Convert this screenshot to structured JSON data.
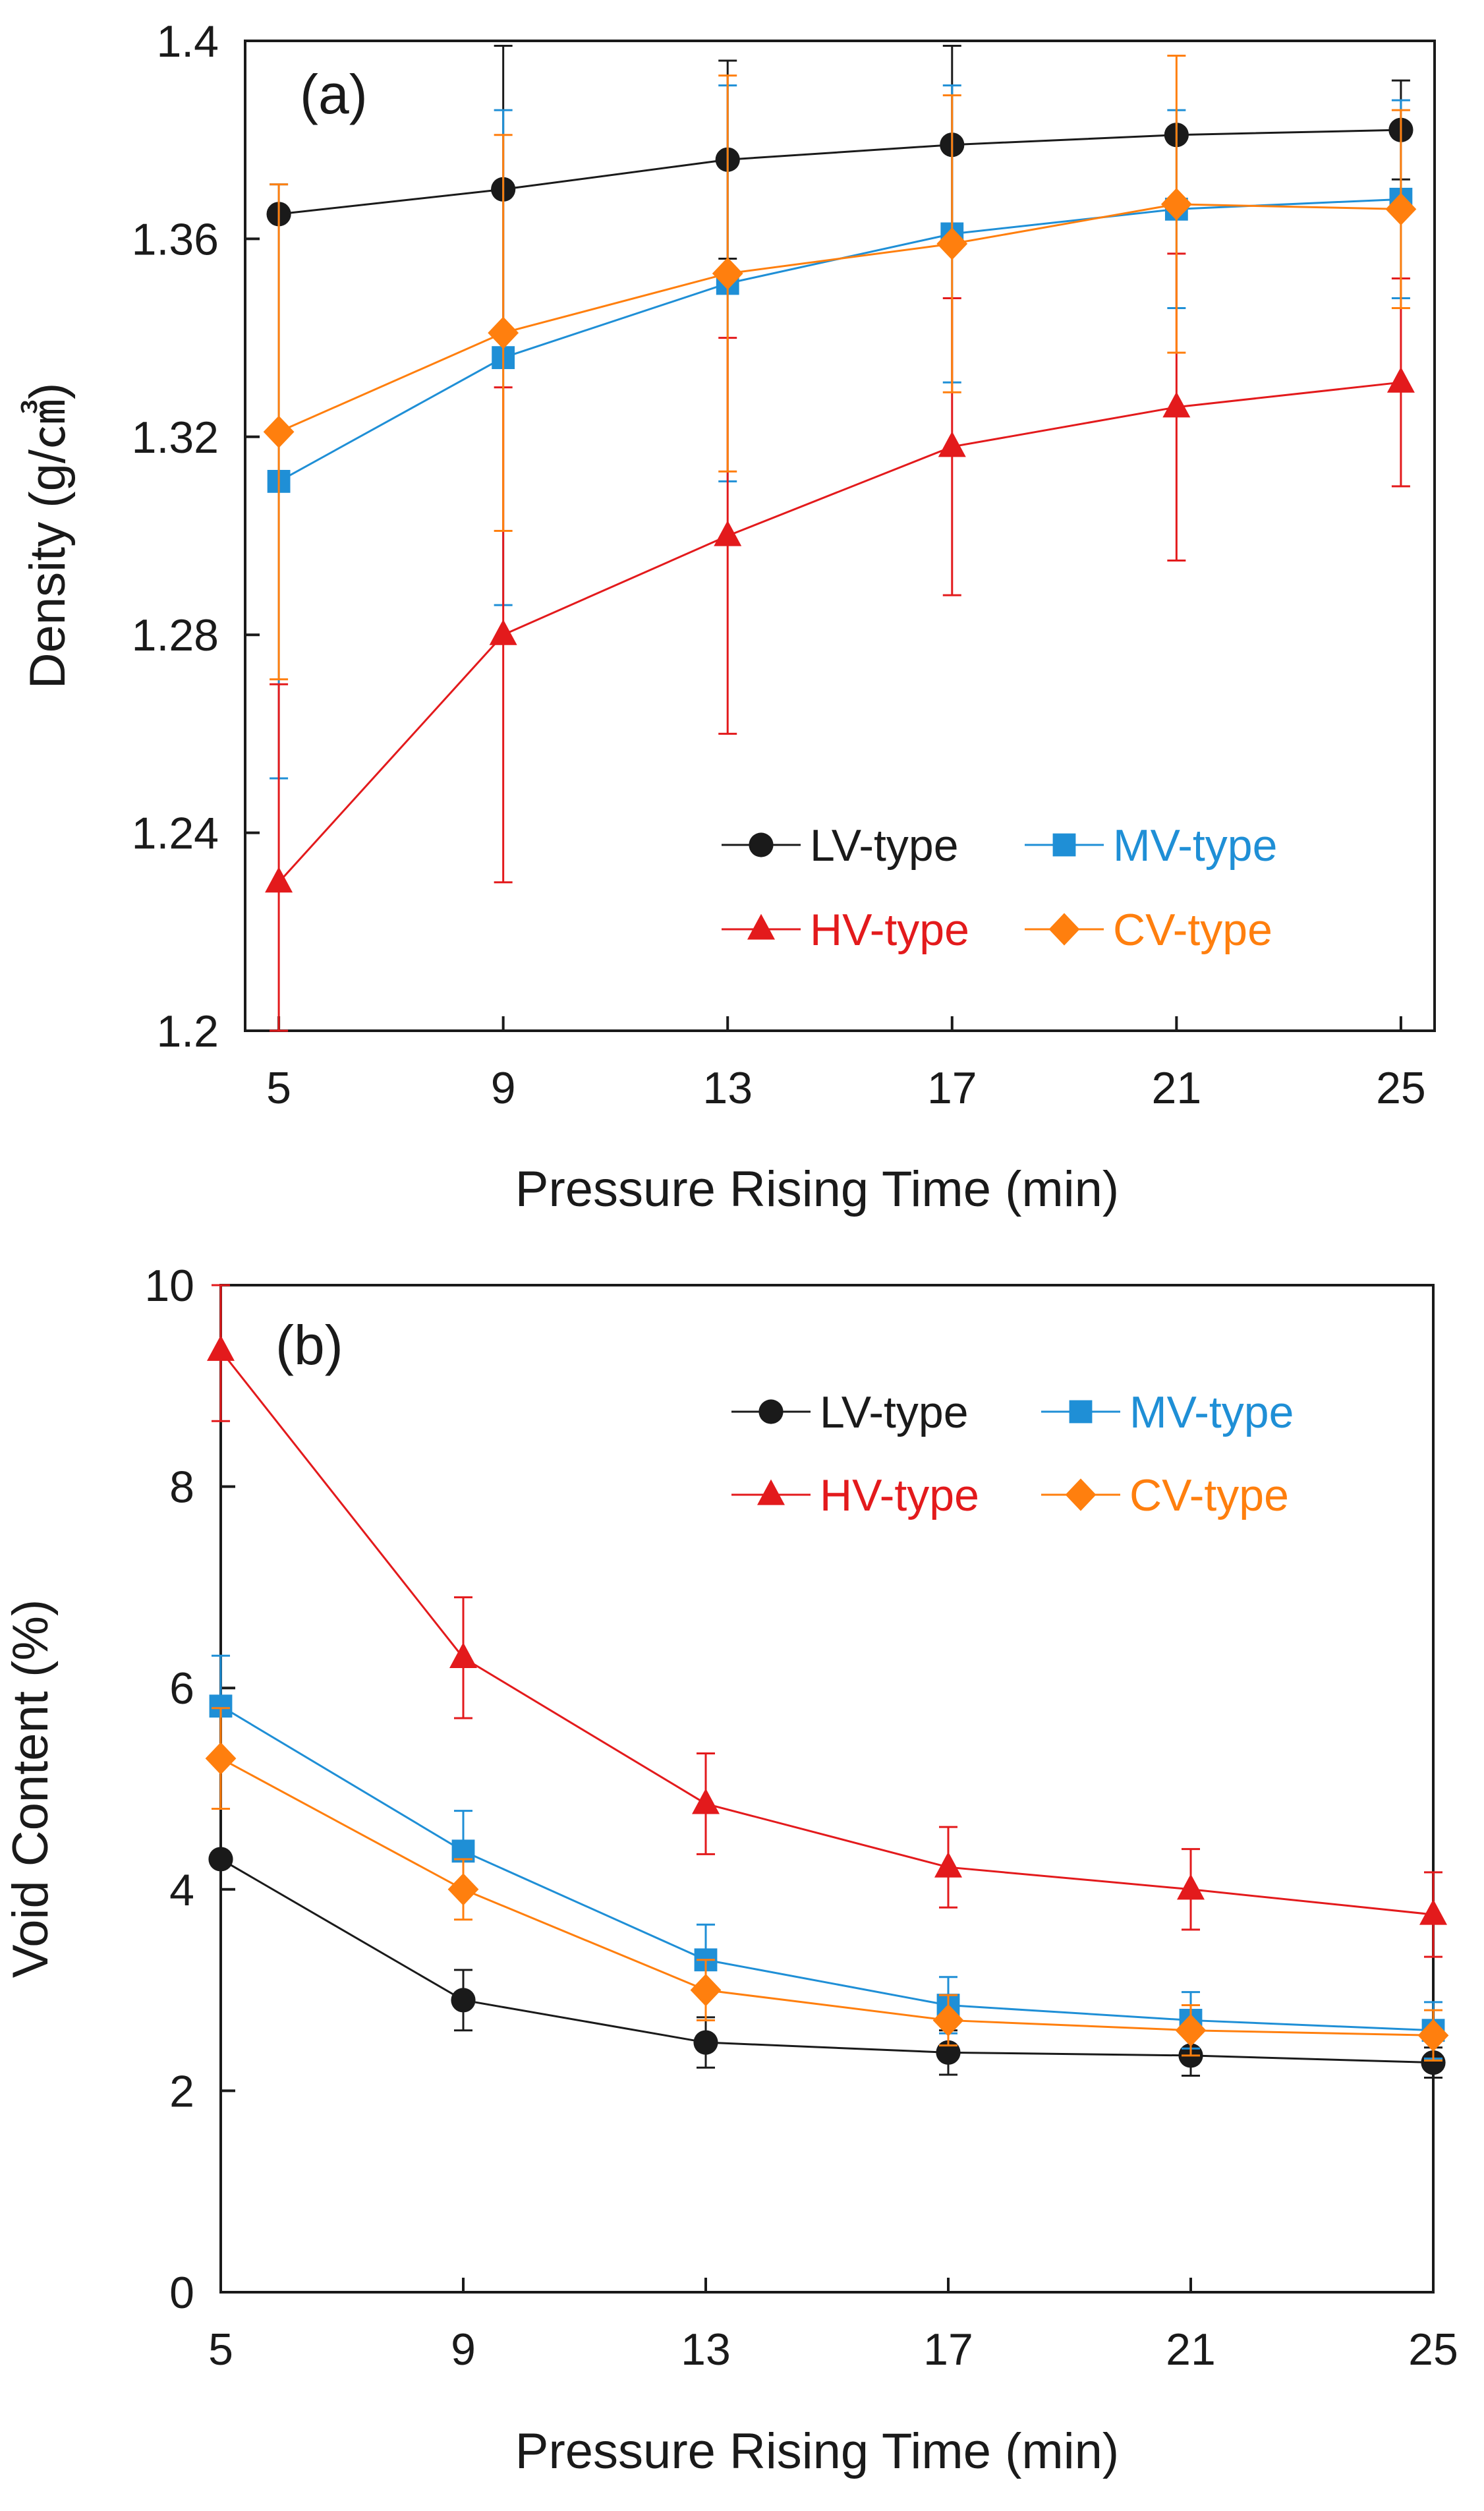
{
  "chart_data": [
    {
      "type": "line",
      "panel_label": "(a)",
      "xlabel": "Pressure Rising Time (min)",
      "ylabel": "Density (g/㎤)",
      "x": [
        5,
        9,
        13,
        17,
        21,
        25
      ],
      "x_tick_labels": [
        "5",
        "9",
        "13",
        "17",
        "21",
        "25"
      ],
      "ylim": [
        1.2,
        1.4
      ],
      "y_ticks": [
        1.2,
        1.24,
        1.28,
        1.32,
        1.36,
        1.4
      ],
      "y_tick_labels": [
        "1.2",
        "1.24",
        "1.28",
        "1.32",
        "1.36",
        "1.4"
      ],
      "legend_position": "lower-right",
      "grid": false,
      "series": [
        {
          "name": "LV-type",
          "color": "#1a1a1a",
          "marker": "circle",
          "values": [
            1.365,
            1.37,
            1.376,
            1.379,
            1.381,
            1.382
          ],
          "errors": [
            0.0,
            0.029,
            0.02,
            0.02,
            0.0,
            0.01
          ]
        },
        {
          "name": "MV-type",
          "color": "#1f8fd6",
          "marker": "square",
          "values": [
            1.311,
            1.336,
            1.351,
            1.361,
            1.366,
            1.368
          ],
          "errors": [
            0.06,
            0.05,
            0.04,
            0.03,
            0.02,
            0.02
          ]
        },
        {
          "name": "HV-type",
          "color": "#e31a1c",
          "marker": "triangle",
          "values": [
            1.23,
            1.28,
            1.3,
            1.318,
            1.326,
            1.331
          ],
          "errors": [
            0.04,
            0.05,
            0.04,
            0.03,
            0.031,
            0.021
          ]
        },
        {
          "name": "CV-type",
          "color": "#ff7f0e",
          "marker": "diamond",
          "values": [
            1.321,
            1.341,
            1.353,
            1.359,
            1.367,
            1.366
          ],
          "errors": [
            0.05,
            0.04,
            0.04,
            0.03,
            0.03,
            0.02
          ]
        }
      ]
    },
    {
      "type": "line",
      "panel_label": "(b)",
      "xlabel": "Pressure Rising Time (min)",
      "ylabel": "Void Content (%)",
      "x": [
        5,
        9,
        13,
        17,
        21,
        25
      ],
      "x_tick_labels": [
        "5",
        "9",
        "13",
        "17",
        "21",
        "25"
      ],
      "ylim": [
        0,
        10
      ],
      "y_ticks": [
        0,
        2,
        4,
        6,
        8,
        10
      ],
      "y_tick_labels": [
        "0",
        "2",
        "4",
        "6",
        "8",
        "10"
      ],
      "legend_position": "top-right",
      "grid": false,
      "series": [
        {
          "name": "LV-type",
          "color": "#1a1a1a",
          "marker": "circle",
          "values": [
            4.3,
            2.9,
            2.48,
            2.38,
            2.35,
            2.28
          ],
          "errors": [
            0.0,
            0.3,
            0.25,
            0.22,
            0.2,
            0.15
          ]
        },
        {
          "name": "MV-type",
          "color": "#1f8fd6",
          "marker": "square",
          "values": [
            5.82,
            4.38,
            3.3,
            2.85,
            2.7,
            2.6
          ],
          "errors": [
            0.5,
            0.4,
            0.35,
            0.28,
            0.28,
            0.28
          ]
        },
        {
          "name": "HV-type",
          "color": "#e31a1c",
          "marker": "triangle",
          "values": [
            9.35,
            6.3,
            4.85,
            4.22,
            4.0,
            3.75
          ],
          "errors": [
            0.7,
            0.6,
            0.5,
            0.4,
            0.4,
            0.42
          ]
        },
        {
          "name": "CV-type",
          "color": "#ff7f0e",
          "marker": "diamond",
          "values": [
            5.3,
            4.0,
            3.0,
            2.7,
            2.6,
            2.55
          ],
          "errors": [
            0.5,
            0.3,
            0.3,
            0.25,
            0.25,
            0.25
          ]
        }
      ]
    }
  ]
}
